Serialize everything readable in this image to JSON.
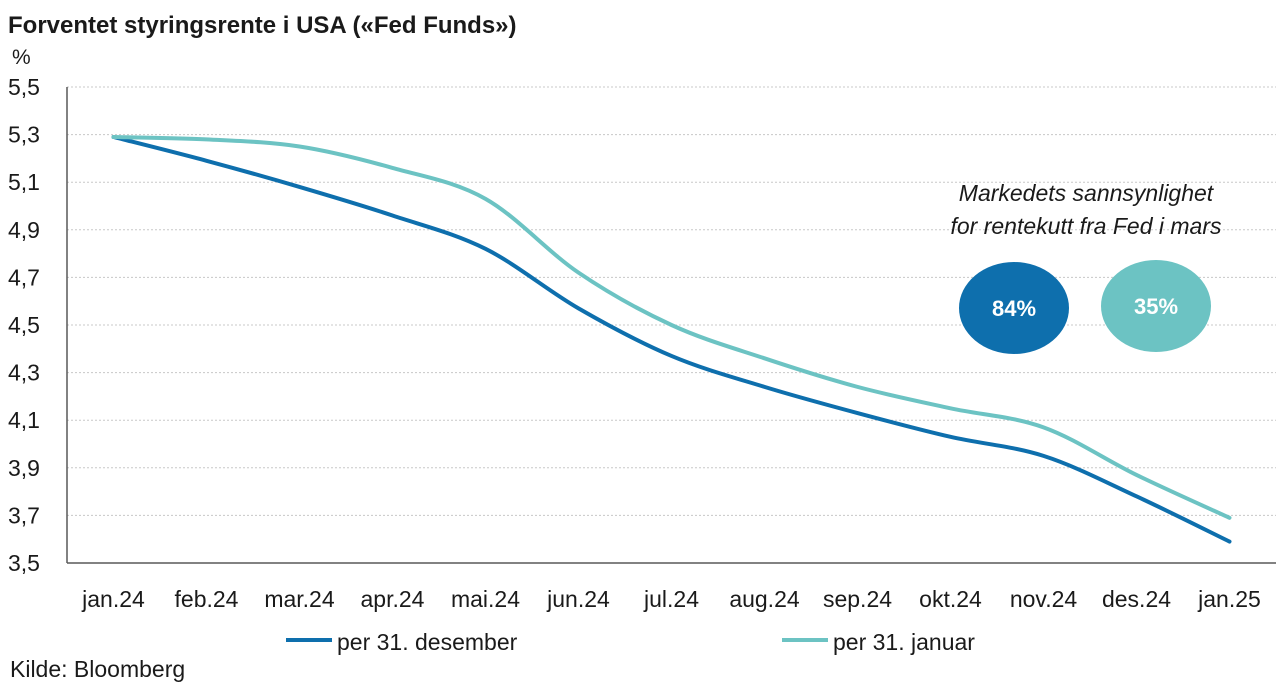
{
  "chart_data": {
    "type": "line",
    "title": "Forventet styringsrente i USA («Fed Funds»)",
    "unit_label": "%",
    "ylim": [
      3.5,
      5.5
    ],
    "yticks": [
      "5,5",
      "5,3",
      "5,1",
      "4,9",
      "4,7",
      "4,5",
      "4,3",
      "4,1",
      "3,9",
      "3,7",
      "3,5"
    ],
    "ytick_values": [
      5.5,
      5.3,
      5.1,
      4.9,
      4.7,
      4.5,
      4.3,
      4.1,
      3.9,
      3.7,
      3.5
    ],
    "categories": [
      "jan.24",
      "feb.24",
      "mar.24",
      "apr.24",
      "mai.24",
      "jun.24",
      "jul.24",
      "aug.24",
      "sep.24",
      "okt.24",
      "nov.24",
      "des.24",
      "jan.25"
    ],
    "grid": true,
    "legend_position": "bottom",
    "series": [
      {
        "name": "per 31. desember",
        "color": "#0e6fad",
        "values": [
          5.29,
          5.19,
          5.08,
          4.96,
          4.82,
          4.57,
          4.37,
          4.24,
          4.13,
          4.03,
          3.95,
          3.78,
          3.59
        ]
      },
      {
        "name": "per 31. januar",
        "color": "#6cc3c3",
        "values": [
          5.29,
          5.28,
          5.25,
          5.16,
          5.03,
          4.72,
          4.5,
          4.36,
          4.24,
          4.15,
          4.07,
          3.87,
          3.69
        ]
      }
    ],
    "annotation": {
      "lines": [
        "Markedets sannsynlighet",
        "for rentekutt fra Fed i mars"
      ],
      "badges": [
        {
          "label": "84%",
          "value": 84,
          "color": "#0e6fad"
        },
        {
          "label": "35%",
          "value": 35,
          "color": "#6cc3c3"
        }
      ]
    },
    "source": "Kilde: Bloomberg"
  }
}
